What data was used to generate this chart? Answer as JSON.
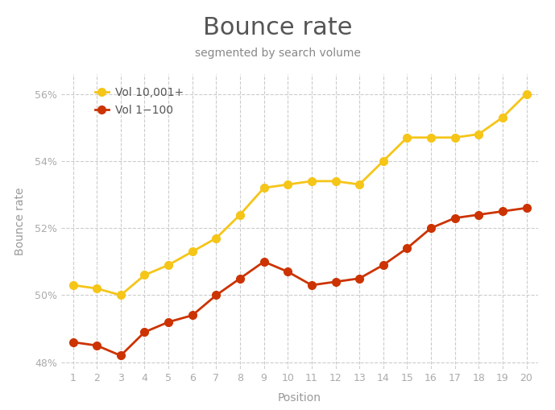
{
  "title": "Bounce rate",
  "subtitle": "segmented by search volume",
  "xlabel": "Position",
  "ylabel": "Bounce rate",
  "positions": [
    1,
    2,
    3,
    4,
    5,
    6,
    7,
    8,
    9,
    10,
    11,
    12,
    13,
    14,
    15,
    16,
    17,
    18,
    19,
    20
  ],
  "vol_high": [
    50.3,
    50.2,
    50.0,
    50.6,
    50.9,
    51.3,
    51.7,
    52.4,
    53.2,
    53.3,
    53.4,
    53.4,
    53.3,
    54.0,
    54.7,
    54.7,
    54.7,
    54.8,
    55.3,
    56.0
  ],
  "vol_low": [
    48.6,
    48.5,
    48.2,
    48.9,
    49.2,
    49.4,
    50.0,
    50.5,
    51.0,
    50.7,
    50.3,
    50.4,
    50.5,
    50.9,
    51.4,
    52.0,
    52.3,
    52.4,
    52.5,
    52.6
  ],
  "color_high": "#f5c518",
  "color_low": "#cc3300",
  "ylim": [
    47.8,
    56.6
  ],
  "yticks": [
    48,
    50,
    52,
    54,
    56
  ],
  "ytick_labels": [
    "48%",
    "50%",
    "52%",
    "54%",
    "56%"
  ],
  "bg_color": "#ffffff",
  "grid_color": "#cccccc",
  "legend_labels": [
    "Vol 10,001+",
    "Vol 1−100"
  ],
  "title_color": "#555555",
  "subtitle_color": "#888888",
  "axis_label_color": "#999999",
  "tick_color": "#aaaaaa",
  "title_fontsize": 22,
  "subtitle_fontsize": 10,
  "axis_label_fontsize": 10,
  "tick_fontsize": 9,
  "legend_fontsize": 10,
  "markersize": 7,
  "linewidth": 2.0
}
